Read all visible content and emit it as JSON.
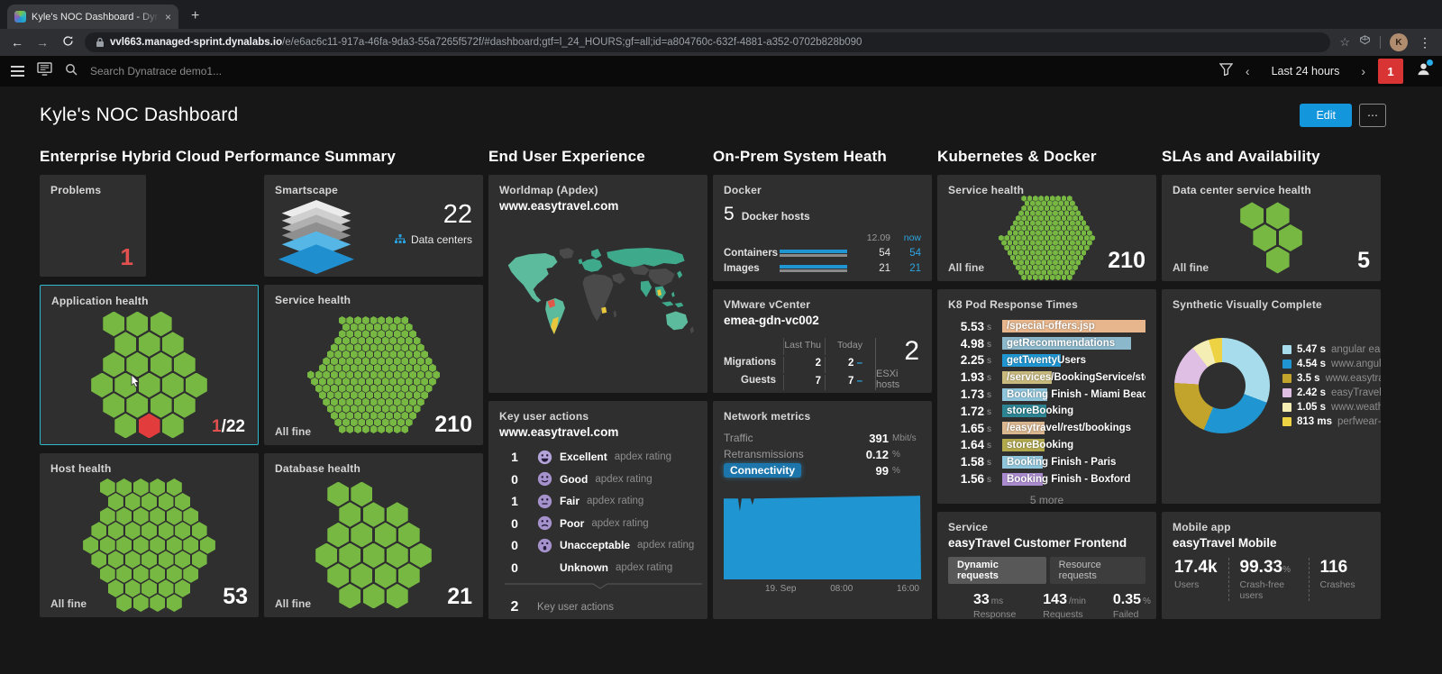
{
  "browser": {
    "tab_title": "Kyle's NOC Dashboard - Dynat",
    "close_tab": "×",
    "new_tab": "+",
    "back": "←",
    "forward": "→",
    "url_domain": "vvl663.managed-sprint.dynalabs.io",
    "url_path": "/e/e6ac6c11-917a-46fa-9da3-55a7265f572f/#dashboard;gtf=l_24_HOURS;gf=all;id=a804760c-632f-4881-a352-0702b828b090",
    "star": "☆",
    "avatar": "K",
    "menu": "⋮"
  },
  "nav": {
    "search_placeholder": "Search Dynatrace demo1...",
    "timeframe": "Last 24 hours",
    "chev_left": "‹",
    "chev_right": "›",
    "badge": "1"
  },
  "header": {
    "title": "Kyle's NOC Dashboard",
    "edit": "Edit",
    "more": "⋯"
  },
  "s1": {
    "title": "Enterprise Hybrid Cloud Performance Summary",
    "problems": {
      "title": "Problems",
      "value": "1"
    },
    "smartscape": {
      "title": "Smartscape",
      "value": "22",
      "label": "Data centers"
    },
    "app": {
      "title": "Application health",
      "bad": "1",
      "total": "/22"
    },
    "service": {
      "title": "Service health",
      "status": "All fine",
      "value": "210"
    },
    "host": {
      "title": "Host health",
      "status": "All fine",
      "value": "53"
    },
    "db": {
      "title": "Database health",
      "status": "All fine",
      "value": "21"
    }
  },
  "s2": {
    "title": "End User Experience",
    "worldmap": {
      "title": "Worldmap (Apdex)",
      "subtitle": "www.easytravel.com"
    },
    "actions": {
      "title": "Key user actions",
      "subtitle": "www.easytravel.com",
      "total": "2",
      "total_label": "Key user actions"
    }
  },
  "s3": {
    "title": "On-Prem System Heath",
    "docker": {
      "title": "Docker",
      "hosts": "5",
      "hosts_label": "Docker hosts",
      "col_date": "12.09",
      "col_now": "now",
      "rows": [
        {
          "label": "Containers",
          "prev": "54",
          "now": "54"
        },
        {
          "label": "Images",
          "prev": "21",
          "now": "21"
        }
      ]
    },
    "vmware": {
      "title": "VMware vCenter",
      "subtitle": "emea-gdn-vc002",
      "col1": "Last Thu",
      "col2": "Today",
      "rows": [
        {
          "label": "Migrations",
          "v1": "2",
          "v2": "2"
        },
        {
          "label": "Guests",
          "v1": "7",
          "v2": "7"
        }
      ],
      "big": "2",
      "big_label": "ESXi hosts"
    },
    "network": {
      "title": "Network metrics",
      "metrics": [
        {
          "label": "Traffic",
          "value": "391",
          "unit": "Mbit/s"
        },
        {
          "label": "Retransmissions",
          "value": "0.12",
          "unit": "%"
        },
        {
          "label": "Connectivity",
          "value": "99",
          "unit": "%"
        }
      ],
      "x1": "19. Sep",
      "x2": "08:00",
      "x3": "16:00"
    }
  },
  "s4": {
    "title": "Kubernetes & Docker",
    "service": {
      "title": "Service health",
      "status": "All fine",
      "value": "210"
    },
    "k8": {
      "title": "K8 Pod Response Times",
      "more": "5 more"
    },
    "frontend": {
      "title": "Service",
      "subtitle": "easyTravel Customer Frontend",
      "tab1": "Dynamic requests",
      "tab2": "Resource requests",
      "metrics": [
        {
          "value": "33",
          "unit": "ms",
          "label": "Response Time"
        },
        {
          "value": "143",
          "unit": "/min",
          "label": "Requests"
        },
        {
          "value": "0.35",
          "unit": "%",
          "label": "Failed requests"
        }
      ]
    }
  },
  "s5": {
    "title": "SLAs and Availability",
    "dc": {
      "title": "Data center service health",
      "status": "All fine",
      "value": "5"
    },
    "synthetic": {
      "title": "Synthetic Visually Complete"
    },
    "mobile": {
      "title": "Mobile app",
      "subtitle": "easyTravel Mobile",
      "metrics": [
        {
          "value": "17.4k",
          "unit": "",
          "label": "Users"
        },
        {
          "value": "99.33",
          "unit": "%",
          "label": "Crash-free users"
        },
        {
          "value": "116",
          "unit": "",
          "label": "Crashes"
        }
      ]
    }
  },
  "chart_data": {
    "colors": {
      "healthy": "#77b843",
      "problem": "#e23c3c",
      "accent_blue": "#1f96d2",
      "selected_tile_border": "#2fb9cd"
    },
    "honeycombs": [
      {
        "id": "hex-app",
        "tile": "Application health",
        "total": 22,
        "problems": 1,
        "problem_index": 14,
        "hex_width": 24
      },
      {
        "id": "hex-service",
        "tile": "Service health",
        "total": 210,
        "problems": 0,
        "hex_width": 8
      },
      {
        "id": "hex-host",
        "tile": "Host health",
        "total": 53,
        "problems": 0,
        "hex_width": 17
      },
      {
        "id": "hex-db",
        "tile": "Database health",
        "total": 21,
        "problems": 0,
        "hex_width": 24
      },
      {
        "id": "hex-k8",
        "tile": "Service health (Kubernetes & Docker)",
        "total": 210,
        "problems": 0,
        "hex_width": 5.8
      },
      {
        "id": "hex-dc",
        "tile": "Data center service health",
        "total": 5,
        "problems": 0,
        "hex_width": 26
      }
    ],
    "k8_response_times": {
      "type": "bar",
      "unit": "s",
      "rows": [
        {
          "value": 5.53,
          "label": "/special-offers.jsp",
          "color": "#e7b68c"
        },
        {
          "value": 4.98,
          "label": "getRecommendations",
          "color": "#8cb8cc"
        },
        {
          "value": 2.25,
          "label": "getTwentyUsers",
          "color": "#1f96d2"
        },
        {
          "value": 1.93,
          "label": "/services/BookingService/storeB...",
          "color": "#c9ba7d"
        },
        {
          "value": 1.73,
          "label": "Booking Finish - Miami Beach",
          "color": "#8fc6dc"
        },
        {
          "value": 1.72,
          "label": "storeBooking",
          "color": "#2d8492"
        },
        {
          "value": 1.65,
          "label": "/easytravel/rest/bookings",
          "color": "#dbb78f"
        },
        {
          "value": 1.64,
          "label": "storeBooking",
          "color": "#b2a94d"
        },
        {
          "value": 1.58,
          "label": "Booking Finish - Paris",
          "color": "#8fc6dc"
        },
        {
          "value": 1.56,
          "label": "Booking Finish - Boxford",
          "color": "#ab8bd0"
        }
      ]
    },
    "apdex_rows": [
      {
        "count": "1",
        "rating": "Excellent",
        "suffix": "apdex rating",
        "face": "excellent"
      },
      {
        "count": "0",
        "rating": "Good",
        "suffix": "apdex rating",
        "face": "good"
      },
      {
        "count": "1",
        "rating": "Fair",
        "suffix": "apdex rating",
        "face": "fair"
      },
      {
        "count": "0",
        "rating": "Poor",
        "suffix": "apdex rating",
        "face": "poor"
      },
      {
        "count": "0",
        "rating": "Unacceptable",
        "suffix": "apdex rating",
        "face": "unacceptable"
      },
      {
        "count": "0",
        "rating": "Unknown",
        "suffix": "apdex rating",
        "face": "none"
      }
    ],
    "synthetic_donut": {
      "type": "pie",
      "segments": [
        {
          "value": 5.47,
          "display": "5.47 s",
          "label": "angular easy...",
          "color": "#a7dcec"
        },
        {
          "value": 4.54,
          "display": "4.54 s",
          "label": "www.angular...",
          "color": "#1f96d2"
        },
        {
          "value": 3.5,
          "display": "3.5 s",
          "label": "www.easytrav...",
          "color": "#c2a32b"
        },
        {
          "value": 2.42,
          "display": "2.42 s",
          "label": "easyTravel d...",
          "color": "#dfc0e4"
        },
        {
          "value": 1.05,
          "display": "1.05 s",
          "label": "www.weathe...",
          "color": "#f4eeb4"
        },
        {
          "value": 0.813,
          "display": "813 ms",
          "label": "perfwear-s...",
          "color": "#edd343"
        }
      ]
    },
    "network_chart": {
      "type": "area",
      "metric": "Connectivity",
      "unit": "%",
      "shape": "flat near 100% across 24h with two small dips near left edge",
      "color": "#1f96d2",
      "x_labels": [
        "19. Sep",
        "08:00",
        "16:00"
      ]
    },
    "docker_counts": {
      "type": "bar",
      "rows": [
        {
          "label": "Containers",
          "prev": 54,
          "now": 54
        },
        {
          "label": "Images",
          "prev": 21,
          "now": 21
        }
      ],
      "color": "#1f96d2"
    },
    "worldmap": {
      "type": "map",
      "metric": "Apdex",
      "colors": {
        "good": "#3fa98c",
        "good_light": "#5cbb9c",
        "moderate": "#e8c73d",
        "bad": "#e0584a",
        "nodata": "#4a4a4a"
      }
    }
  }
}
